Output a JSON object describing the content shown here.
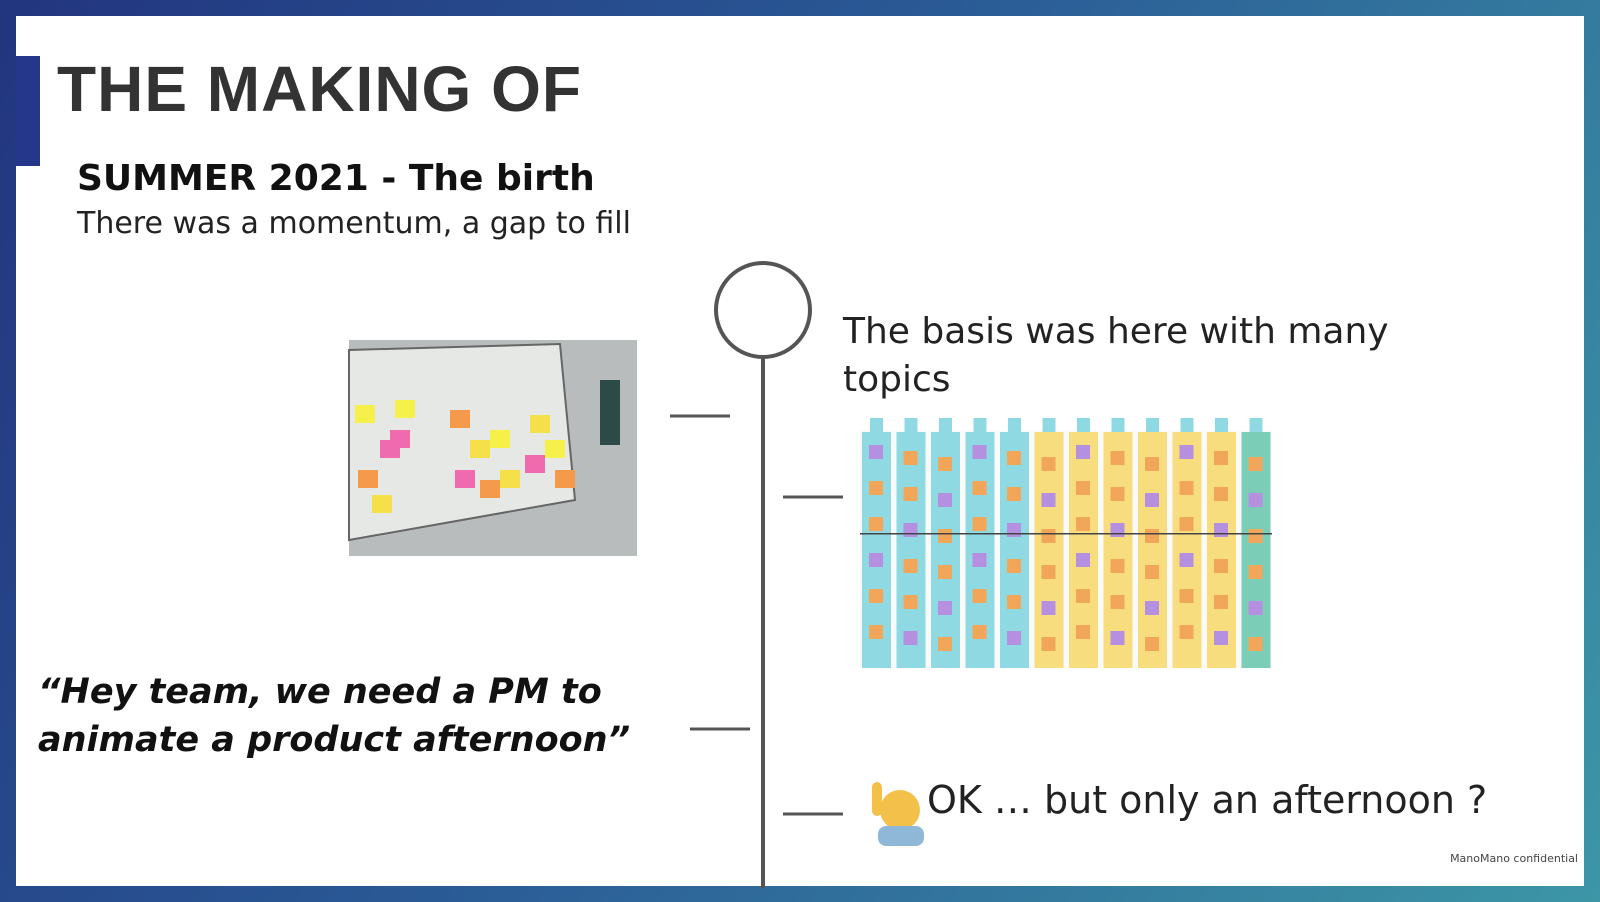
{
  "header": {
    "title": "THE MAKING OF",
    "subtitle": "SUMMER 2021 - The birth",
    "intro": "There was a momentum, a gap to fill"
  },
  "timeline": [
    {
      "text": "The basis was here with many topics"
    },
    {
      "text": "“Hey team, we need a PM to animate a product afternoon”"
    },
    {
      "text": "OK … but only an afternoon ?"
    }
  ],
  "footer": "ManoMano confidential"
}
